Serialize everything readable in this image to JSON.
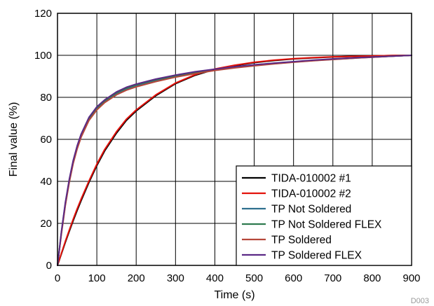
{
  "chart_data": {
    "type": "line",
    "xlabel": "Time (s)",
    "ylabel": "Final value (%)",
    "xlim": [
      0,
      900
    ],
    "ylim": [
      0,
      120
    ],
    "xticks": [
      0,
      100,
      200,
      300,
      400,
      500,
      600,
      700,
      800,
      900
    ],
    "yticks": [
      0,
      20,
      40,
      60,
      80,
      100,
      120
    ],
    "grid": true,
    "legend_position": "bottom-right",
    "figure_id": "D003",
    "x": [
      0,
      10,
      20,
      30,
      40,
      50,
      60,
      80,
      100,
      120,
      150,
      175,
      200,
      250,
      300,
      350,
      400,
      450,
      500,
      550,
      600,
      650,
      700,
      750,
      800,
      850,
      900
    ],
    "series": [
      {
        "name": "TIDA-010002 #1",
        "color": "#000000",
        "values": [
          0,
          5.5,
          11,
          16.2,
          21.3,
          26.2,
          30.8,
          39.5,
          47.5,
          54.5,
          63,
          69,
          73.5,
          80.8,
          86.5,
          90.5,
          93.3,
          95.1,
          96.5,
          97.5,
          98.3,
          98.8,
          99.2,
          99.5,
          99.7,
          99.9,
          100
        ]
      },
      {
        "name": "TIDA-010002 #2",
        "color": "#e3120b",
        "values": [
          0,
          5.8,
          11.5,
          16.8,
          22,
          27,
          31.6,
          40.2,
          48.2,
          55.2,
          63.7,
          69.6,
          74,
          81.2,
          86.8,
          90.8,
          93.5,
          95.3,
          96.7,
          97.7,
          98.4,
          98.9,
          99.3,
          99.5,
          99.7,
          99.9,
          100
        ]
      },
      {
        "name": "TP Not Soldered",
        "color": "#2e6f8e",
        "values": [
          0,
          15.5,
          29,
          40,
          49,
          56,
          61.5,
          69.5,
          74.5,
          78,
          81.8,
          84,
          85.6,
          88,
          90,
          91.6,
          93,
          94.2,
          95.2,
          96,
          96.8,
          97.5,
          98.1,
          98.6,
          99.1,
          99.6,
          100
        ]
      },
      {
        "name": "TP Not Soldered FLEX",
        "color": "#2f7a4f",
        "values": [
          0,
          15.8,
          29.4,
          40.5,
          49.5,
          56.5,
          62,
          70,
          75,
          78.4,
          82.2,
          84.4,
          86,
          88.4,
          90.3,
          91.9,
          93.2,
          94.4,
          95.4,
          96.2,
          96.9,
          97.6,
          98.2,
          98.7,
          99.2,
          99.6,
          100
        ]
      },
      {
        "name": "TP Soldered",
        "color": "#b5473a",
        "values": [
          0,
          15,
          28.5,
          39.5,
          48.5,
          55.5,
          61,
          69,
          74,
          77.5,
          81.2,
          83.4,
          85,
          87.5,
          89.6,
          91.3,
          92.8,
          94,
          95,
          95.9,
          96.7,
          97.4,
          98,
          98.6,
          99.1,
          99.6,
          100
        ]
      },
      {
        "name": "TP Soldered FLEX",
        "color": "#5b2a86",
        "values": [
          0,
          16.2,
          30,
          41,
          50,
          57,
          62.5,
          70.5,
          75.5,
          78.8,
          82.6,
          84.8,
          86.3,
          88.7,
          90.6,
          92.2,
          93.4,
          94.6,
          95.5,
          96.3,
          97,
          97.7,
          98.3,
          98.8,
          99.2,
          99.6,
          100
        ]
      }
    ]
  }
}
